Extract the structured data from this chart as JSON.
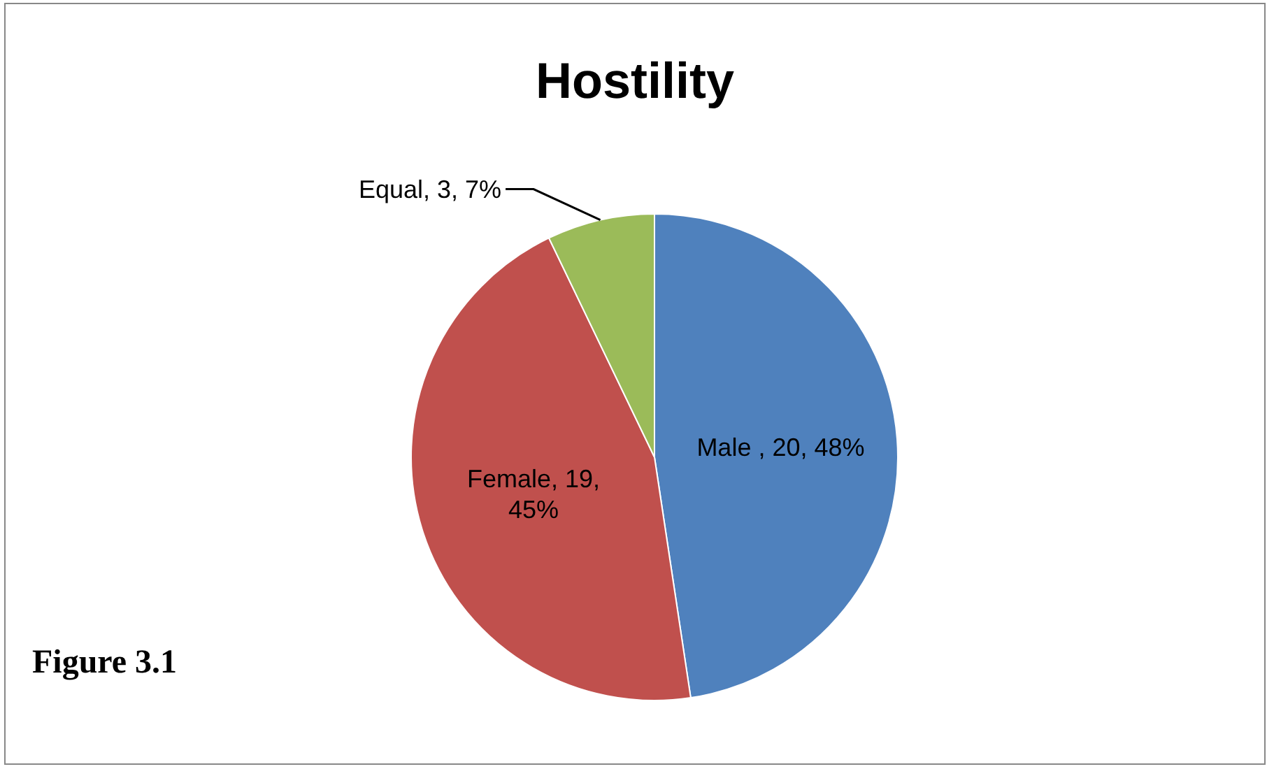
{
  "chart_data": {
    "type": "pie",
    "title": "Hostility",
    "categories": [
      "Male ",
      "Female",
      "Equal"
    ],
    "values": [
      20,
      19,
      3
    ],
    "colors": [
      "#4f81bd",
      "#c0504d",
      "#9bbb59"
    ],
    "value_labels": [
      "20, 48%",
      "19, 45%",
      "3, 7%"
    ],
    "annotations": [
      "Figure 3.1"
    ]
  }
}
